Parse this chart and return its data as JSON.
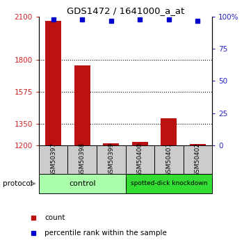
{
  "title": "GDS1472 / 1641000_a_at",
  "samples": [
    "GSM50397",
    "GSM50398",
    "GSM50399",
    "GSM50400",
    "GSM50401",
    "GSM50402"
  ],
  "counts": [
    2070,
    1760,
    1215,
    1225,
    1390,
    1210
  ],
  "percentiles": [
    98,
    98,
    97,
    98,
    98,
    97
  ],
  "ylim_left": [
    1200,
    2100
  ],
  "ylim_right": [
    0,
    100
  ],
  "yticks_left": [
    1200,
    1350,
    1575,
    1800,
    2100
  ],
  "yticks_right": [
    0,
    25,
    50,
    75,
    100
  ],
  "ytick_labels_left": [
    "1200",
    "1350",
    "1575",
    "1800",
    "2100"
  ],
  "ytick_labels_right": [
    "0",
    "25",
    "50",
    "75",
    "100%"
  ],
  "bar_color": "#bb1111",
  "dot_color": "#0000cc",
  "left_axis_color": "#cc2222",
  "right_axis_color": "#2222cc",
  "control_color": "#aaffaa",
  "knockdown_color": "#33dd33",
  "sample_box_color": "#cccccc",
  "protocol_label": "protocol",
  "legend_count_label": "count",
  "legend_pct_label": "percentile rank within the sample",
  "control_label": "control",
  "knockdown_label": "spotted-dick knockdown"
}
